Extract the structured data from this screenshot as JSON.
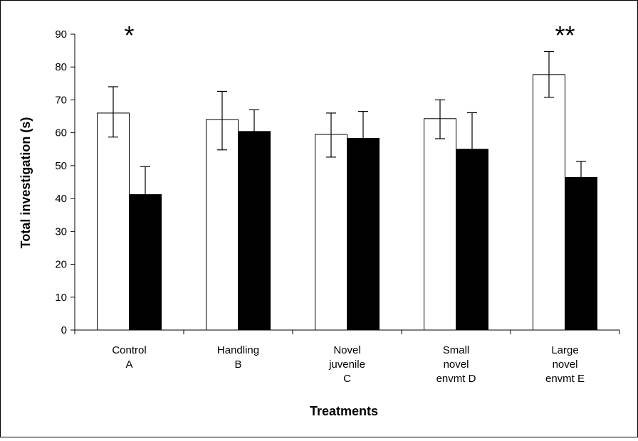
{
  "chart_data": {
    "type": "bar",
    "title": "",
    "xlabel": "Treatments",
    "ylabel": "Total investigation (s)",
    "ylim": [
      0,
      90
    ],
    "yticks": [
      0,
      10,
      20,
      30,
      40,
      50,
      60,
      70,
      80,
      90
    ],
    "grid": false,
    "legend": "none",
    "categories": [
      [
        "Control",
        "A"
      ],
      [
        "Handling",
        "B"
      ],
      [
        "Novel",
        "juvenile",
        "C"
      ],
      [
        "Small",
        "novel",
        "envmt D"
      ],
      [
        "Large",
        "novel",
        "envmt E"
      ]
    ],
    "series": [
      {
        "color": "#ffffff",
        "values": [
          66,
          64,
          59.5,
          64.3,
          77.7
        ],
        "err_low": [
          58.7,
          54.8,
          52.6,
          58.2,
          70.8
        ],
        "err_high": [
          74,
          72.6,
          66,
          70,
          84.7
        ]
      },
      {
        "color": "#000000",
        "values": [
          41.2,
          60.4,
          58.3,
          55,
          46.4
        ],
        "err_low": [
          41.2,
          60.4,
          58.3,
          55,
          46.4
        ],
        "err_high": [
          49.7,
          67,
          66.5,
          66.1,
          51.3
        ]
      }
    ],
    "annotations": [
      {
        "category_index": 0,
        "text": "*"
      },
      {
        "category_index": 4,
        "text": "**"
      }
    ]
  }
}
